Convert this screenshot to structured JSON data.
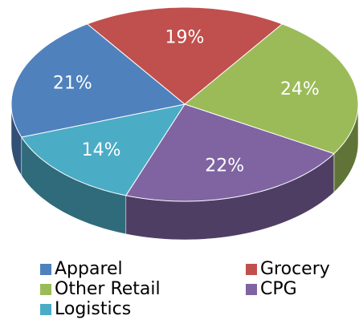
{
  "chart_data": {
    "type": "pie",
    "categories": [
      "Grocery",
      "Other Retail",
      "CPG",
      "Logistics",
      "Apparel"
    ],
    "values": [
      19,
      24,
      22,
      14,
      21
    ],
    "value_labels": [
      "19%",
      "24%",
      "22%",
      "14%",
      "21%"
    ],
    "colors": [
      "#c0504d",
      "#9bbb59",
      "#8064a2",
      "#4bacc6",
      "#4f81bd"
    ],
    "legend_order": [
      4,
      0,
      1,
      2,
      3
    ]
  }
}
